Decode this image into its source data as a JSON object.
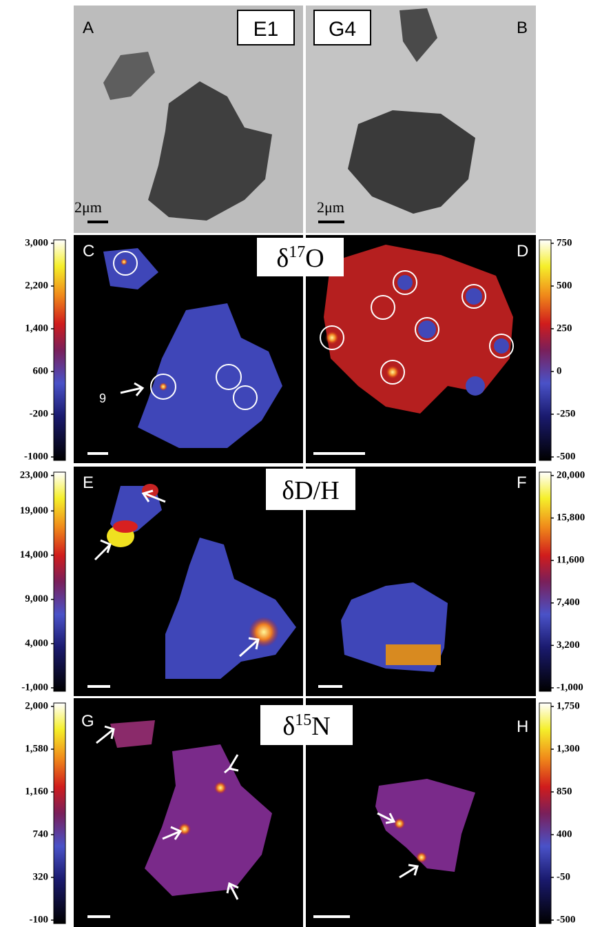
{
  "panels": [
    {
      "letter": "A",
      "sample": "E1",
      "scale": "2μm"
    },
    {
      "letter": "B",
      "sample": "G4",
      "scale": "2μm"
    },
    {
      "letter": "C",
      "point_label": "9"
    },
    {
      "letter": "D"
    },
    {
      "letter": "E"
    },
    {
      "letter": "F"
    },
    {
      "letter": "G"
    },
    {
      "letter": "H"
    }
  ],
  "row_titles": [
    {
      "prefix": "δ",
      "sup": "17",
      "suffix": "O"
    },
    {
      "prefix": "δD/H"
    },
    {
      "prefix": "δ",
      "sup": "15",
      "suffix": "N"
    }
  ],
  "colorbars": [
    {
      "lim": [
        -1000,
        3000
      ],
      "ticks": [
        {
          "value": 3000,
          "label": "3,000"
        },
        {
          "value": 2200,
          "label": "2,200"
        },
        {
          "value": 1400,
          "label": "1,400"
        },
        600,
        -200,
        {
          "value": -1000,
          "label": "-1000"
        }
      ]
    },
    {
      "lim": [
        -500,
        750
      ],
      "ticks": [
        750,
        500,
        250,
        0,
        -250,
        -500
      ]
    },
    {
      "lim": [
        -1000,
        23000
      ],
      "ticks": [
        {
          "value": 23000,
          "label": "23,000"
        },
        {
          "value": 19000,
          "label": "19,000"
        },
        {
          "value": 14000,
          "label": "14,000"
        },
        {
          "value": 9000,
          "label": "9,000"
        },
        {
          "value": 4000,
          "label": "4,000"
        },
        {
          "value": -1000,
          "label": "-1,000"
        }
      ]
    },
    {
      "lim": [
        -1000,
        20000
      ],
      "ticks": [
        {
          "value": 20000,
          "label": "20,000"
        },
        {
          "value": 15800,
          "label": "15,800"
        },
        {
          "value": 11600,
          "label": "11,600"
        },
        {
          "value": 7400,
          "label": "7,400"
        },
        {
          "value": 3200,
          "label": "3,200"
        },
        {
          "value": -1000,
          "label": "-1,000"
        }
      ]
    },
    {
      "lim": [
        -100,
        2000
      ],
      "ticks": [
        {
          "value": 2000,
          "label": "2,000"
        },
        {
          "value": 1580,
          "label": "1,580"
        },
        {
          "value": 1160,
          "label": "1,160"
        },
        740,
        320,
        -100
      ]
    },
    {
      "lim": [
        -500,
        1750
      ],
      "ticks": [
        {
          "value": 1750,
          "label": "1,750"
        },
        {
          "value": 1300,
          "label": "1,300"
        },
        850,
        400,
        -50,
        -500
      ]
    }
  ]
}
